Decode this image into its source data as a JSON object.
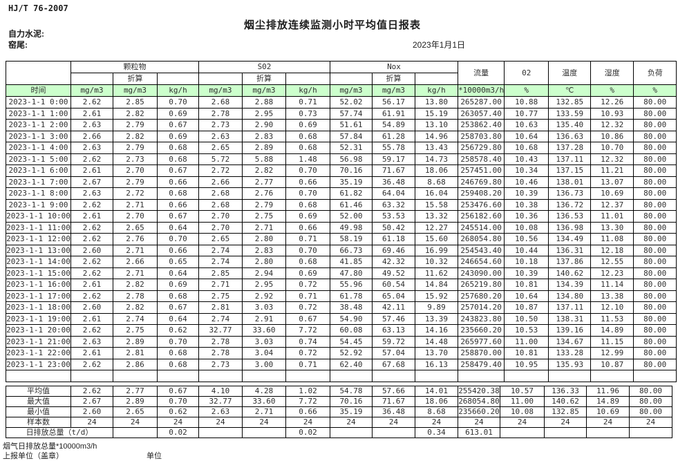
{
  "page": {
    "doc_code": "HJ/T  76-2007",
    "title": "烟尘排放连续监测小时平均值日报表",
    "company": "自力水泥:",
    "kiln": "窑尾:",
    "date": "2023年1月1日"
  },
  "colors": {
    "header_green": "#ccffcc",
    "border": "#000000"
  },
  "table": {
    "time_label": "时间",
    "converted_label": "折算",
    "groups": [
      "颗粒物",
      "S02",
      "Nox"
    ],
    "singles": [
      "流量",
      "02",
      "温度",
      "湿度",
      "负荷"
    ],
    "units": [
      "mg/m3",
      "mg/m3",
      "kg/h",
      "mg/m3",
      "mg/m3",
      "kg/h",
      "mg/m3",
      "mg/m3",
      "kg/h",
      "*10000m3/h",
      "%",
      "℃",
      "%",
      "%"
    ],
    "rows": [
      {
        "time": "2023-1-1 0:00",
        "values": [
          "2.62",
          "2.85",
          "0.70",
          "2.68",
          "2.88",
          "0.71",
          "52.02",
          "56.17",
          "13.80",
          "265287.00",
          "10.88",
          "132.85",
          "12.26",
          "80.00"
        ]
      },
      {
        "time": "2023-1-1 1:00",
        "values": [
          "2.61",
          "2.82",
          "0.69",
          "2.78",
          "2.95",
          "0.73",
          "57.74",
          "61.91",
          "15.19",
          "263057.40",
          "10.77",
          "133.59",
          "10.93",
          "80.00"
        ]
      },
      {
        "time": "2023-1-1 2:00",
        "values": [
          "2.63",
          "2.79",
          "0.67",
          "2.73",
          "2.90",
          "0.69",
          "51.61",
          "54.89",
          "13.10",
          "253862.40",
          "10.63",
          "135.40",
          "12.32",
          "80.00"
        ]
      },
      {
        "time": "2023-1-1 3:00",
        "values": [
          "2.66",
          "2.82",
          "0.69",
          "2.63",
          "2.83",
          "0.68",
          "57.84",
          "61.28",
          "14.96",
          "258703.80",
          "10.64",
          "136.63",
          "10.86",
          "80.00"
        ]
      },
      {
        "time": "2023-1-1 4:00",
        "values": [
          "2.63",
          "2.79",
          "0.68",
          "2.65",
          "2.89",
          "0.68",
          "52.31",
          "55.78",
          "13.43",
          "256729.80",
          "10.68",
          "137.28",
          "10.70",
          "80.00"
        ]
      },
      {
        "time": "2023-1-1 5:00",
        "values": [
          "2.62",
          "2.73",
          "0.68",
          "5.72",
          "5.88",
          "1.48",
          "56.98",
          "59.17",
          "14.73",
          "258578.40",
          "10.43",
          "137.11",
          "12.32",
          "80.00"
        ]
      },
      {
        "time": "2023-1-1 6:00",
        "values": [
          "2.61",
          "2.70",
          "0.67",
          "2.72",
          "2.82",
          "0.70",
          "70.16",
          "71.67",
          "18.06",
          "257451.00",
          "10.34",
          "137.15",
          "11.21",
          "80.00"
        ]
      },
      {
        "time": "2023-1-1 7:00",
        "values": [
          "2.67",
          "2.79",
          "0.66",
          "2.66",
          "2.77",
          "0.66",
          "35.19",
          "36.48",
          "8.68",
          "246769.80",
          "10.46",
          "138.01",
          "13.07",
          "80.00"
        ]
      },
      {
        "time": "2023-1-1 8:00",
        "values": [
          "2.63",
          "2.72",
          "0.68",
          "2.68",
          "2.76",
          "0.70",
          "61.82",
          "64.04",
          "16.04",
          "259408.20",
          "10.39",
          "136.73",
          "10.69",
          "80.00"
        ]
      },
      {
        "time": "2023-1-1 9:00",
        "values": [
          "2.62",
          "2.71",
          "0.66",
          "2.68",
          "2.79",
          "0.68",
          "61.46",
          "63.32",
          "15.58",
          "253476.60",
          "10.38",
          "136.72",
          "12.37",
          "80.00"
        ]
      },
      {
        "time": "2023-1-1 10:00",
        "values": [
          "2.61",
          "2.70",
          "0.67",
          "2.70",
          "2.75",
          "0.69",
          "52.00",
          "53.53",
          "13.32",
          "256182.60",
          "10.36",
          "136.53",
          "11.01",
          "80.00"
        ]
      },
      {
        "time": "2023-1-1 11:00",
        "values": [
          "2.62",
          "2.65",
          "0.64",
          "2.70",
          "2.71",
          "0.66",
          "49.98",
          "50.42",
          "12.27",
          "245514.00",
          "10.08",
          "136.98",
          "13.30",
          "80.00"
        ]
      },
      {
        "time": "2023-1-1 12:00",
        "values": [
          "2.62",
          "2.76",
          "0.70",
          "2.65",
          "2.80",
          "0.71",
          "58.19",
          "61.18",
          "15.60",
          "268054.80",
          "10.56",
          "134.49",
          "11.08",
          "80.00"
        ]
      },
      {
        "time": "2023-1-1 13:00",
        "values": [
          "2.60",
          "2.71",
          "0.66",
          "2.74",
          "2.83",
          "0.70",
          "66.73",
          "69.46",
          "16.99",
          "254543.40",
          "10.44",
          "136.31",
          "12.18",
          "80.00"
        ]
      },
      {
        "time": "2023-1-1 14:00",
        "values": [
          "2.62",
          "2.66",
          "0.65",
          "2.74",
          "2.80",
          "0.68",
          "41.85",
          "42.32",
          "10.32",
          "246654.60",
          "10.18",
          "137.86",
          "12.55",
          "80.00"
        ]
      },
      {
        "time": "2023-1-1 15:00",
        "values": [
          "2.62",
          "2.71",
          "0.64",
          "2.85",
          "2.94",
          "0.69",
          "47.80",
          "49.52",
          "11.62",
          "243090.00",
          "10.39",
          "140.62",
          "12.23",
          "80.00"
        ]
      },
      {
        "time": "2023-1-1 16:00",
        "values": [
          "2.61",
          "2.82",
          "0.69",
          "2.71",
          "2.95",
          "0.72",
          "55.96",
          "60.54",
          "14.84",
          "265219.80",
          "10.81",
          "134.39",
          "11.14",
          "80.00"
        ]
      },
      {
        "time": "2023-1-1 17:00",
        "values": [
          "2.62",
          "2.78",
          "0.68",
          "2.75",
          "2.92",
          "0.71",
          "61.78",
          "65.04",
          "15.92",
          "257680.20",
          "10.64",
          "134.80",
          "13.38",
          "80.00"
        ]
      },
      {
        "time": "2023-1-1 18:00",
        "values": [
          "2.60",
          "2.82",
          "0.67",
          "2.81",
          "3.03",
          "0.72",
          "38.48",
          "42.11",
          "9.89",
          "257014.20",
          "10.87",
          "137.11",
          "12.10",
          "80.00"
        ]
      },
      {
        "time": "2023-1-1 19:00",
        "values": [
          "2.61",
          "2.74",
          "0.64",
          "2.74",
          "2.91",
          "0.67",
          "54.90",
          "57.46",
          "13.39",
          "243823.80",
          "10.50",
          "138.31",
          "11.53",
          "80.00"
        ]
      },
      {
        "time": "2023-1-1 20:00",
        "values": [
          "2.62",
          "2.75",
          "0.62",
          "32.77",
          "33.60",
          "7.72",
          "60.08",
          "63.13",
          "14.16",
          "235660.20",
          "10.53",
          "139.16",
          "14.89",
          "80.00"
        ]
      },
      {
        "time": "2023-1-1 21:00",
        "values": [
          "2.63",
          "2.89",
          "0.70",
          "2.78",
          "3.03",
          "0.74",
          "54.45",
          "59.72",
          "14.48",
          "265977.60",
          "11.00",
          "134.67",
          "11.15",
          "80.00"
        ]
      },
      {
        "time": "2023-1-1 22:00",
        "values": [
          "2.61",
          "2.81",
          "0.68",
          "2.78",
          "3.04",
          "0.72",
          "52.92",
          "57.04",
          "13.70",
          "258870.00",
          "10.81",
          "133.28",
          "12.99",
          "80.00"
        ]
      },
      {
        "time": "2023-1-1 23:00",
        "values": [
          "2.62",
          "2.86",
          "0.68",
          "2.73",
          "3.00",
          "0.71",
          "62.40",
          "67.68",
          "16.13",
          "258479.40",
          "10.95",
          "135.93",
          "10.87",
          "80.00"
        ]
      }
    ],
    "summary": [
      {
        "label": "平均值",
        "values": [
          "2.62",
          "2.77",
          "0.67",
          "4.10",
          "4.28",
          "1.02",
          "54.78",
          "57.66",
          "14.01",
          "255420.38",
          "10.57",
          "136.33",
          "11.96",
          "80.00"
        ]
      },
      {
        "label": "最大值",
        "values": [
          "2.67",
          "2.89",
          "0.70",
          "32.77",
          "33.60",
          "7.72",
          "70.16",
          "71.67",
          "18.06",
          "268054.80",
          "11.00",
          "140.62",
          "14.89",
          "80.00"
        ]
      },
      {
        "label": "最小值",
        "values": [
          "2.60",
          "2.65",
          "0.62",
          "2.63",
          "2.71",
          "0.66",
          "35.19",
          "36.48",
          "8.68",
          "235660.20",
          "10.08",
          "132.85",
          "10.69",
          "80.00"
        ]
      },
      {
        "label": "样本数",
        "values": [
          "24",
          "24",
          "24",
          "24",
          "24",
          "24",
          "24",
          "24",
          "24",
          "24",
          "24",
          "24",
          "24",
          "24"
        ]
      }
    ],
    "daily_total": {
      "label": "日排放总量（t/d）",
      "values": [
        "",
        "0.02",
        "",
        "",
        "0.02",
        "",
        "",
        "0.34",
        "613.01",
        "",
        "",
        "",
        ""
      ]
    }
  },
  "footer": {
    "note": "烟气日排放总量*10000m3/h",
    "report_unit": "上报单位（盖章）",
    "unit_label": "单位"
  }
}
